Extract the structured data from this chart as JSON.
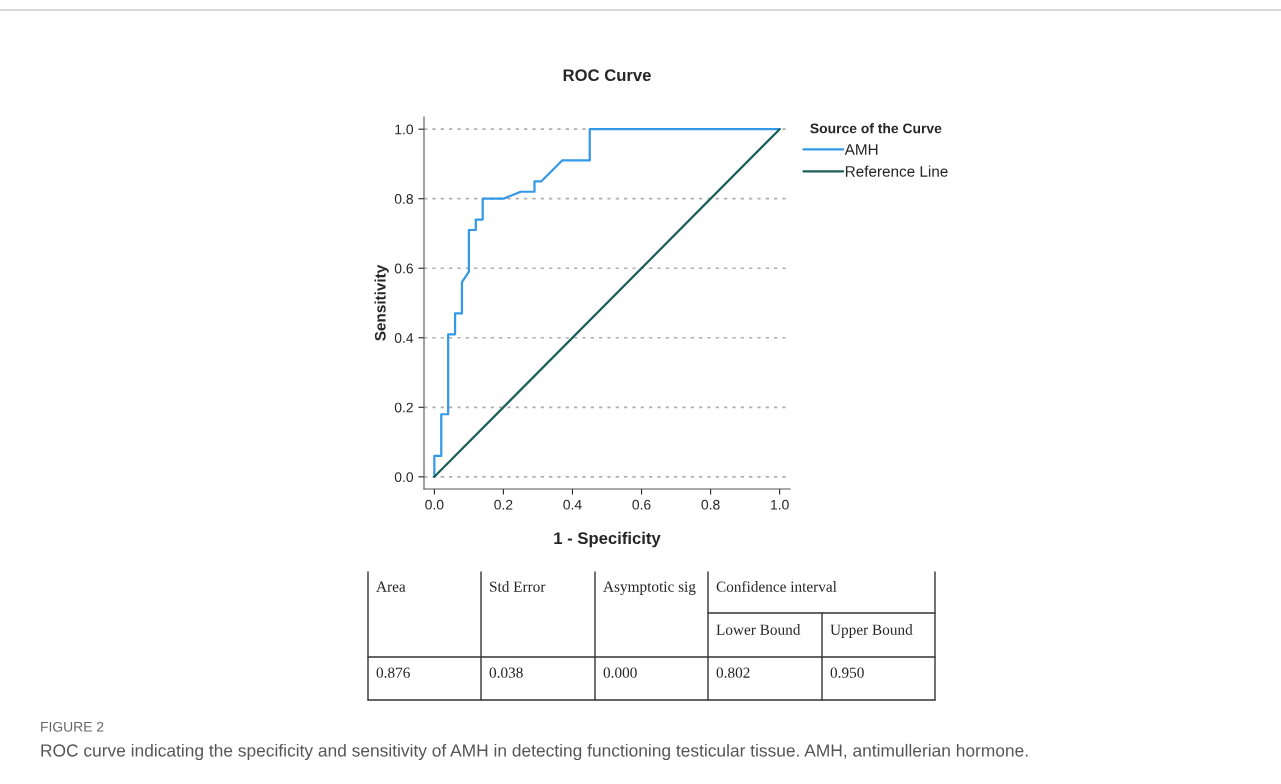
{
  "chart_data": {
    "type": "line",
    "title": "ROC Curve",
    "xlabel": "1 - Specificity",
    "ylabel": "Sensitivity",
    "legend_title": "Source of the Curve",
    "legend": "right",
    "grid": "y",
    "line_style": "solid",
    "xlim": [
      -0.03,
      1.03
    ],
    "ylim": [
      -0.035,
      1.035
    ],
    "xticks": [
      {
        "value": 0,
        "label": "0.0"
      },
      {
        "value": 0.2,
        "label": "0.2"
      },
      {
        "value": 0.4,
        "label": "0.4"
      },
      {
        "value": 0.6,
        "label": "0.6"
      },
      {
        "value": 0.8,
        "label": "0.8"
      },
      {
        "value": 1,
        "label": "1.0"
      }
    ],
    "yticks": [
      {
        "value": 0,
        "label": "0.0"
      },
      {
        "value": 0.2,
        "label": "0.2"
      },
      {
        "value": 0.4,
        "label": "0.4"
      },
      {
        "value": 0.6,
        "label": "0.6"
      },
      {
        "value": 0.8,
        "label": "0.8"
      },
      {
        "value": 1,
        "label": "1.0"
      }
    ],
    "series": [
      {
        "name": "AMH",
        "color": "#3399e6",
        "x": [
          0,
          0,
          0.02,
          0.02,
          0.04,
          0.04,
          0.06,
          0.06,
          0.08,
          0.08,
          0.1,
          0.1,
          0.12,
          0.12,
          0.14,
          0.14,
          0.2,
          0.25,
          0.29,
          0.29,
          0.31,
          0.37,
          0.45,
          0.45,
          1
        ],
        "values": [
          0,
          0.06,
          0.06,
          0.18,
          0.18,
          0.41,
          0.41,
          0.47,
          0.47,
          0.56,
          0.59,
          0.71,
          0.71,
          0.74,
          0.74,
          0.8,
          0.8,
          0.82,
          0.82,
          0.85,
          0.85,
          0.91,
          0.91,
          1,
          1
        ]
      },
      {
        "name": "Reference Line",
        "color": "#1b5e5a",
        "x": [
          0,
          1
        ],
        "values": [
          0,
          1
        ]
      }
    ],
    "annotations": [
      "Area",
      "Std Error",
      "Asymptotic sig",
      "Confidence interval",
      "Lower Bound",
      "Upper Bound",
      "0.876",
      "0.038",
      "0.000",
      "0.802",
      "0.950",
      "FIGURE 2",
      "ROC curve indicating the specificity and sensitivity of AMH in detecting functioning testicular tissue. AMH, antimullerian hormone."
    ]
  }
}
